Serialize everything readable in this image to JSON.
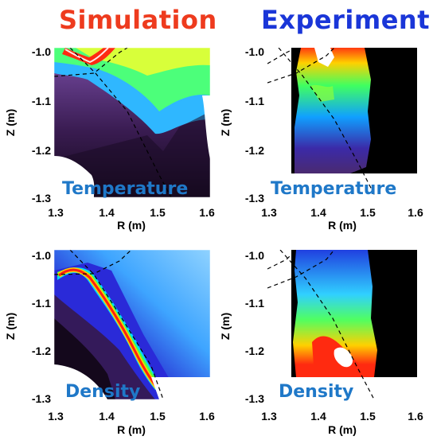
{
  "titles": {
    "simulation": "Simulation",
    "experiment": "Experiment"
  },
  "panels": [
    {
      "id": "sim-temperature",
      "label": "Temperature"
    },
    {
      "id": "exp-temperature",
      "label": "Temperature"
    },
    {
      "id": "sim-density",
      "label": "Density"
    },
    {
      "id": "exp-density",
      "label": "Density"
    }
  ],
  "axes": {
    "xlabel": "R (m)",
    "ylabel": "Z (m)",
    "x_ticks": [
      "1.3",
      "1.4",
      "1.5",
      "1.6"
    ],
    "y_ticks": [
      "-1.0",
      "-1.1",
      "-1.2",
      "-1.3"
    ],
    "xlim": [
      1.3,
      1.6
    ],
    "ylim": [
      -1.3,
      -1.0
    ]
  },
  "colors": {
    "simulation_title": "#ee3b1e",
    "experiment_title": "#1a36d8",
    "overlay_label": "#1f78c8"
  }
}
